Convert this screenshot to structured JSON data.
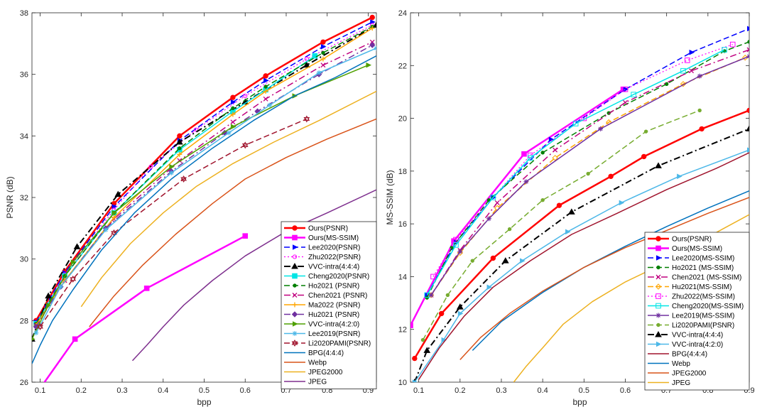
{
  "chart_data": [
    {
      "type": "line",
      "xlabel": "bpp",
      "ylabel": "PSNR (dB)",
      "xlim": [
        0.08,
        0.92
      ],
      "ylim": [
        26,
        38
      ],
      "xticks": [
        "0.1",
        "0.2",
        "0.3",
        "0.4",
        "0.5",
        "0.6",
        "0.7",
        "0.8",
        "0.9"
      ],
      "yticks": [
        "26",
        "28",
        "30",
        "32",
        "34",
        "36",
        "38"
      ],
      "legend_position": "bottom-right",
      "grid": false,
      "series": [
        {
          "name": "Ours(PSNR)",
          "color": "#ff0000",
          "width": 2.5,
          "dash": "",
          "marker": "circle",
          "x": [
            0.09,
            0.16,
            0.28,
            0.44,
            0.57,
            0.65,
            0.79,
            0.91
          ],
          "y": [
            28.0,
            29.6,
            31.8,
            34.0,
            35.25,
            35.95,
            37.05,
            37.85
          ]
        },
        {
          "name": "Ours(MS-SSIM)",
          "color": "#ff00ff",
          "width": 2.5,
          "dash": "",
          "marker": "square",
          "x": [
            0.1,
            0.185,
            0.36,
            0.6
          ],
          "y": [
            25.8,
            27.4,
            29.05,
            30.75
          ]
        },
        {
          "name": "Lee2020(PSNR)",
          "color": "#0000ff",
          "width": 1.5,
          "dash": "8 4",
          "marker": "tri-right",
          "x": [
            0.09,
            0.16,
            0.28,
            0.44,
            0.57,
            0.65,
            0.79,
            0.91
          ],
          "y": [
            27.95,
            29.55,
            31.7,
            33.85,
            35.1,
            35.8,
            36.9,
            37.7
          ]
        },
        {
          "name": "Zhu2022(PSNR)",
          "color": "#ff00ff",
          "width": 1.2,
          "dash": "2 3",
          "marker": "open-circle",
          "x": [
            0.09,
            0.16,
            0.28,
            0.37,
            0.48,
            0.6,
            0.75,
            0.91
          ],
          "y": [
            27.9,
            29.5,
            31.6,
            33.0,
            34.2,
            35.3,
            36.5,
            37.6
          ]
        },
        {
          "name": "VVC-intra(4:4:4)",
          "color": "#000000",
          "width": 2,
          "dash": "9 4 2 4",
          "marker": "triangle",
          "x": [
            0.08,
            0.12,
            0.19,
            0.29,
            0.44,
            0.6,
            0.75,
            0.92
          ],
          "y": [
            27.4,
            28.8,
            30.4,
            32.1,
            33.8,
            35.1,
            36.3,
            37.6
          ]
        },
        {
          "name": "Cheng2020(PSNR)",
          "color": "#00e5e5",
          "width": 1.5,
          "dash": "",
          "marker": "square",
          "x": [
            0.09,
            0.16,
            0.28,
            0.44,
            0.57,
            0.65,
            0.77
          ],
          "y": [
            27.9,
            29.45,
            31.5,
            33.55,
            34.8,
            35.5,
            36.6
          ]
        },
        {
          "name": "Ho2021 (PSNR)",
          "color": "#007f00",
          "width": 1.5,
          "dash": "8 4",
          "marker": "dot",
          "x": [
            0.09,
            0.16,
            0.28,
            0.44,
            0.57,
            0.65,
            0.79,
            0.91
          ],
          "y": [
            27.9,
            29.45,
            31.5,
            33.6,
            34.9,
            35.6,
            36.7,
            37.55
          ]
        },
        {
          "name": "Chen2021 (PSNR)",
          "color": "#c0007f",
          "width": 1.5,
          "dash": "9 4 2 4",
          "marker": "x",
          "x": [
            0.09,
            0.16,
            0.28,
            0.44,
            0.57,
            0.65,
            0.79,
            0.91
          ],
          "y": [
            27.85,
            29.3,
            31.3,
            33.2,
            34.45,
            35.2,
            36.3,
            37.05
          ]
        },
        {
          "name": "Ma2022 (PSNR)",
          "color": "#ffa500",
          "width": 1.5,
          "dash": "",
          "marker": "plus",
          "x": [
            0.09,
            0.16,
            0.28,
            0.44,
            0.57,
            0.65,
            0.79,
            0.91
          ],
          "y": [
            27.85,
            29.3,
            31.35,
            33.4,
            34.7,
            35.45,
            36.5,
            37.5
          ]
        },
        {
          "name": "Hu2021 (PSNR)",
          "color": "#7030a0",
          "width": 1.5,
          "dash": "9 4 2 4",
          "marker": "diamond",
          "x": [
            0.09,
            0.15,
            0.26,
            0.42,
            0.55,
            0.63,
            0.78,
            0.91
          ],
          "y": [
            27.8,
            29.1,
            31.0,
            32.85,
            34.1,
            34.8,
            36.0,
            36.95
          ]
        },
        {
          "name": "VVC-intra(4:2:0)",
          "color": "#4fa000",
          "width": 1.5,
          "dash": "",
          "marker": "tri-right",
          "x": [
            0.08,
            0.12,
            0.18,
            0.28,
            0.42,
            0.57,
            0.72,
            0.9
          ],
          "y": [
            27.4,
            28.5,
            29.9,
            31.5,
            33.0,
            34.3,
            35.3,
            36.3
          ]
        },
        {
          "name": "Lee2019(PSNR)",
          "color": "#4db8e8",
          "width": 1.5,
          "dash": "",
          "marker": "star",
          "x": [
            0.09,
            0.15,
            0.26,
            0.42,
            0.56,
            0.66,
            0.78,
            0.92
          ],
          "y": [
            27.6,
            29.1,
            30.95,
            32.8,
            34.1,
            35.0,
            36.05,
            36.85
          ]
        },
        {
          "name": "Li2020PAMI(PSNR)",
          "color": "#a0142d",
          "width": 1.5,
          "dash": "8 4",
          "marker": "hexagram",
          "x": [
            0.1,
            0.18,
            0.28,
            0.45,
            0.6,
            0.75
          ],
          "y": [
            27.8,
            29.35,
            30.85,
            32.6,
            33.7,
            34.55
          ]
        },
        {
          "name": "BPG(4:4:4)",
          "color": "#0072bd",
          "width": 1.5,
          "dash": "",
          "marker": "",
          "x": [
            0.08,
            0.1,
            0.13,
            0.18,
            0.25,
            0.33,
            0.42,
            0.52,
            0.62,
            0.72,
            0.82,
            0.92
          ],
          "y": [
            26.6,
            27.2,
            28.0,
            29.0,
            30.3,
            31.5,
            32.6,
            33.6,
            34.5,
            35.3,
            35.9,
            36.6
          ]
        },
        {
          "name": "Webp",
          "color": "#d95319",
          "width": 1.5,
          "dash": "",
          "marker": "",
          "x": [
            0.22,
            0.28,
            0.35,
            0.43,
            0.52,
            0.6,
            0.7,
            0.8,
            0.92
          ],
          "y": [
            27.8,
            28.8,
            29.8,
            30.8,
            31.8,
            32.6,
            33.3,
            33.9,
            34.55
          ]
        },
        {
          "name": "JPEG2000",
          "color": "#edb120",
          "width": 1.5,
          "dash": "",
          "marker": "",
          "x": [
            0.2,
            0.25,
            0.32,
            0.4,
            0.48,
            0.57,
            0.67,
            0.78,
            0.92
          ],
          "y": [
            28.45,
            29.4,
            30.5,
            31.5,
            32.35,
            33.1,
            33.8,
            34.5,
            35.45
          ]
        },
        {
          "name": "JPEG",
          "color": "#7e2f8e",
          "width": 1.5,
          "dash": "",
          "marker": "",
          "x": [
            0.325,
            0.36,
            0.4,
            0.45,
            0.52,
            0.6,
            0.7,
            0.8,
            0.92
          ],
          "y": [
            26.7,
            27.2,
            27.8,
            28.5,
            29.3,
            30.1,
            30.9,
            31.5,
            32.25
          ]
        }
      ]
    },
    {
      "type": "line",
      "xlabel": "bpp",
      "ylabel": "MS-SSIM (dB)",
      "xlim": [
        0.08,
        0.9
      ],
      "ylim": [
        10,
        24
      ],
      "xticks": [
        "0.1",
        "0.2",
        "0.3",
        "0.4",
        "0.5",
        "0.6",
        "0.7",
        "0.8",
        "0.9"
      ],
      "yticks": [
        "10",
        "12",
        "14",
        "16",
        "18",
        "20",
        "22",
        "24"
      ],
      "legend_position": "bottom-right",
      "grid": false,
      "series": [
        {
          "name": "Ours(PSNR)",
          "color": "#ff0000",
          "width": 2.5,
          "dash": "",
          "marker": "circle",
          "x": [
            0.09,
            0.155,
            0.28,
            0.44,
            0.565,
            0.645,
            0.785,
            0.9
          ],
          "y": [
            10.9,
            12.6,
            14.7,
            16.7,
            17.8,
            18.55,
            19.6,
            20.3
          ]
        },
        {
          "name": "Ours(MS-SSIM)",
          "color": "#ff00ff",
          "width": 2.5,
          "dash": "",
          "marker": "square",
          "x": [
            0.08,
            0.185,
            0.355,
            0.595
          ],
          "y": [
            12.15,
            15.35,
            18.65,
            21.1
          ]
        },
        {
          "name": "Lee2020(MS-SSIM)",
          "color": "#0000ff",
          "width": 1.5,
          "dash": "8 4",
          "marker": "tri-right",
          "x": [
            0.12,
            0.19,
            0.28,
            0.42,
            0.6,
            0.76,
            0.9
          ],
          "y": [
            13.3,
            15.3,
            17.0,
            19.2,
            21.1,
            22.5,
            23.4
          ]
        },
        {
          "name": "Ho2021 (MS-SSIM)",
          "color": "#007f00",
          "width": 1.5,
          "dash": "8 4",
          "marker": "dot",
          "x": [
            0.12,
            0.18,
            0.27,
            0.4,
            0.56,
            0.7,
            0.84,
            0.9
          ],
          "y": [
            13.2,
            15.1,
            16.9,
            18.7,
            20.2,
            21.3,
            22.55,
            22.9
          ]
        },
        {
          "name": "Chen2021 (MS-SSIM)",
          "color": "#c0007f",
          "width": 1.5,
          "dash": "9 4 2 4",
          "marker": "x",
          "x": [
            0.13,
            0.2,
            0.29,
            0.43,
            0.6,
            0.76,
            0.9
          ],
          "y": [
            13.3,
            15.0,
            16.8,
            18.8,
            20.6,
            21.8,
            22.6
          ]
        },
        {
          "name": "Hu2021(MS-SSIM)",
          "color": "#ffa500",
          "width": 1.5,
          "dash": "8 4",
          "marker": "open-diamond",
          "x": [
            0.13,
            0.2,
            0.29,
            0.43,
            0.56,
            0.74,
            0.89
          ],
          "y": [
            13.3,
            14.9,
            16.6,
            18.5,
            19.85,
            21.3,
            22.3
          ]
        },
        {
          "name": "Zhu2022(MS-SSIM)",
          "color": "#ff00ff",
          "width": 1.2,
          "dash": "2 3",
          "marker": "open-square",
          "x": [
            0.135,
            0.19,
            0.37,
            0.5,
            0.6,
            0.75,
            0.86
          ],
          "y": [
            14.0,
            15.4,
            18.6,
            20.0,
            21.1,
            22.2,
            22.8
          ]
        },
        {
          "name": "Cheng2020(MS-SSIM)",
          "color": "#00e5e5",
          "width": 1.5,
          "dash": "",
          "marker": "open-square",
          "x": [
            0.12,
            0.19,
            0.28,
            0.37,
            0.48,
            0.62,
            0.74,
            0.84
          ],
          "y": [
            13.3,
            15.2,
            17.0,
            18.5,
            19.8,
            20.9,
            21.8,
            22.6
          ]
        },
        {
          "name": "Lee2019(MS-SSIM)",
          "color": "#7030a0",
          "width": 1.5,
          "dash": "",
          "marker": "star",
          "x": [
            0.13,
            0.2,
            0.27,
            0.36,
            0.54,
            0.78,
            0.9
          ],
          "y": [
            13.3,
            14.95,
            16.2,
            17.6,
            19.6,
            21.6,
            22.35
          ]
        },
        {
          "name": "Li2020PAMI(PSNR)",
          "color": "#77ac30",
          "width": 1.5,
          "dash": "8 4",
          "marker": "dot",
          "x": [
            0.11,
            0.17,
            0.23,
            0.32,
            0.4,
            0.51,
            0.65,
            0.78
          ],
          "y": [
            11.6,
            13.3,
            14.6,
            15.8,
            16.9,
            17.9,
            19.5,
            20.3
          ]
        },
        {
          "name": "VVC-intra(4:4:4)",
          "color": "#000000",
          "width": 2,
          "dash": "9 4 2 4",
          "marker": "triangle",
          "x": [
            0.09,
            0.12,
            0.2,
            0.31,
            0.47,
            0.68,
            0.9
          ],
          "y": [
            10.0,
            11.2,
            12.85,
            14.6,
            16.45,
            18.2,
            19.6
          ]
        },
        {
          "name": "VVC-intra(4:2:0)",
          "color": "#4db8e8",
          "width": 1.5,
          "dash": "",
          "marker": "tri-right",
          "x": [
            0.09,
            0.16,
            0.2,
            0.27,
            0.35,
            0.46,
            0.59,
            0.73,
            0.9
          ],
          "y": [
            10.0,
            11.6,
            12.6,
            13.6,
            14.6,
            15.7,
            16.8,
            17.8,
            18.8
          ]
        },
        {
          "name": "BPG(4:4:4)",
          "color": "#a0142d",
          "width": 1.5,
          "dash": "",
          "marker": "",
          "x": [
            0.1,
            0.15,
            0.21,
            0.28,
            0.37,
            0.47,
            0.58,
            0.7,
            0.82,
            0.9
          ],
          "y": [
            10.1,
            11.3,
            12.5,
            13.6,
            14.6,
            15.6,
            16.4,
            17.3,
            18.1,
            18.7
          ]
        },
        {
          "name": "Webp",
          "color": "#0072bd",
          "width": 1.5,
          "dash": "",
          "marker": "",
          "x": [
            0.23,
            0.3,
            0.4,
            0.5,
            0.6,
            0.7,
            0.8,
            0.9
          ],
          "y": [
            11.2,
            12.3,
            13.4,
            14.35,
            15.15,
            15.9,
            16.6,
            17.25
          ]
        },
        {
          "name": "JPEG2000",
          "color": "#d95319",
          "width": 1.5,
          "dash": "",
          "marker": "",
          "x": [
            0.2,
            0.25,
            0.32,
            0.4,
            0.5,
            0.6,
            0.7,
            0.8,
            0.9
          ],
          "y": [
            10.85,
            11.7,
            12.6,
            13.45,
            14.35,
            15.1,
            15.75,
            16.4,
            17.0
          ]
        },
        {
          "name": "JPEG",
          "color": "#edb120",
          "width": 1.5,
          "dash": "",
          "marker": "",
          "x": [
            0.33,
            0.36,
            0.4,
            0.45,
            0.52,
            0.6,
            0.7,
            0.8,
            0.9
          ],
          "y": [
            10.0,
            10.6,
            11.3,
            12.2,
            13.05,
            13.8,
            14.55,
            15.5,
            16.35
          ]
        }
      ]
    }
  ]
}
